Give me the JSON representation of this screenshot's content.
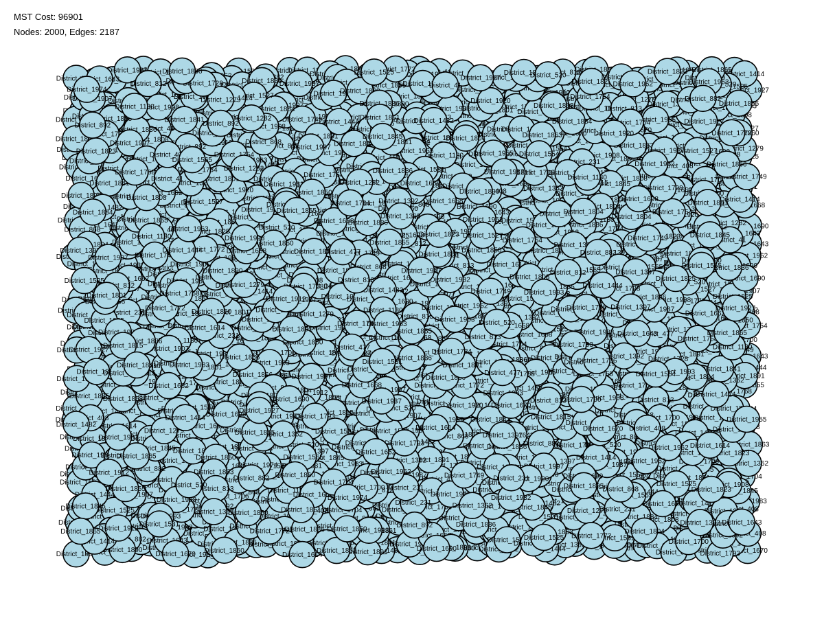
{
  "header": {
    "cost_text": "MST Cost: 96901",
    "size_text": "Nodes: 2000, Edges: 2187"
  },
  "colors": {
    "node_fill": "#add8e6",
    "node_stroke": "#000000",
    "edge": "#ff0000",
    "background": "#ffffff"
  },
  "graph": {
    "node_count": 2000,
    "edge_count": 2187,
    "node_label_prefix": "District_",
    "node_labels": [
      "District_1728",
      "District_1907",
      "District_520",
      "District_1704",
      "District_41",
      "District_1734",
      "District_231",
      "District_812",
      "District_408",
      "District_813",
      "District_1554",
      "District_1282",
      "District_892",
      "District_1279",
      "District_477",
      "District_1836",
      "District_1392",
      "District_1890",
      "District_1444",
      "District_1130",
      "District_1565",
      "District_1858",
      "District_882",
      "District_868",
      "District_1863",
      "District_1912",
      "District_1861",
      "District_1825",
      "District_1768",
      "District_1955",
      "District_1983",
      "District_1987",
      "District_1997",
      "District_1908",
      "District_1932",
      "District_1804",
      "District_1749",
      "District_1808",
      "District_1670",
      "District_1614",
      "District_1527",
      "District_1845",
      "District_1754",
      "District_1362",
      "District_1793",
      "District_1927",
      "District_1993",
      "District_1700",
      "District_1884",
      "District_1865",
      "District_1662",
      "District_1525",
      "District_1866",
      "District_1860",
      "District_1855",
      "District_1698",
      "District_1963",
      "District_1920",
      "District_1414",
      "District_1706",
      "District_1836",
      "District_1823",
      "District_1772",
      "District_1397",
      "District_1690",
      "District_1815",
      "District_1482",
      "District_1643",
      "District_1841",
      "District_1850",
      "District_1974",
      "District_1891",
      "District_1962",
      "District_1801",
      "District_1668",
      "District_1937",
      "District_1531"
    ]
  }
}
